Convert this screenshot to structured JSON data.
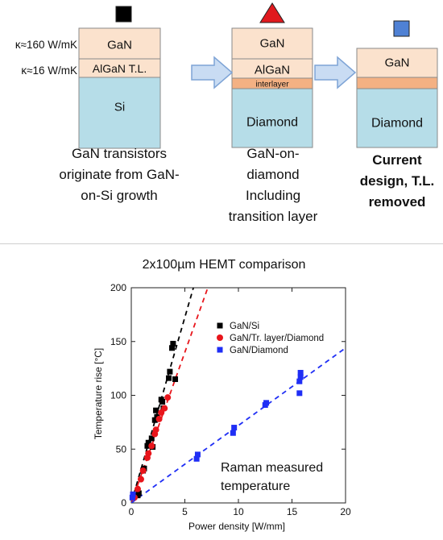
{
  "top_panel": {
    "stacks": [
      {
        "marker": {
          "shape": "square",
          "color": "#000000"
        },
        "layers": [
          "GaN",
          "AlGaN T.L.",
          "Si"
        ],
        "conductivity_labels": [
          "κ≈160 W/mK",
          "κ≈16 W/mK"
        ],
        "caption": [
          "GaN transistors",
          "originate from GaN-",
          "on-Si growth"
        ]
      },
      {
        "marker": {
          "shape": "triangle",
          "color": "#e0191e"
        },
        "layers": [
          "GaN",
          "AlGaN",
          "interlayer",
          "Diamond"
        ],
        "caption": [
          "GaN-on-",
          "diamond",
          "Including",
          "transition layer"
        ]
      },
      {
        "marker": {
          "shape": "square",
          "color": "#4f81d4"
        },
        "layers": [
          "GaN",
          "",
          "Diamond"
        ],
        "caption": [
          "Current",
          "design, T.L.",
          "removed"
        ]
      }
    ],
    "layer_colors": {
      "gan": "#fbe2cd",
      "algan": "#fbe2cd",
      "interlayer": "#f4b183",
      "substrate": "#b6dde8",
      "arrow": "#c9dcf3",
      "arrow_stroke": "#7ea4d6"
    }
  },
  "chart_data": {
    "type": "scatter",
    "title": "2x100µm HEMT comparison",
    "xlabel": "Power density [W/mm]",
    "ylabel": "Temperature rise [°C]",
    "xlim": [
      0,
      20
    ],
    "ylim": [
      0,
      200
    ],
    "xticks": [
      0,
      5,
      10,
      15,
      20
    ],
    "yticks": [
      0,
      50,
      100,
      150,
      200
    ],
    "annotation": [
      "Raman measured",
      "temperature"
    ],
    "legend_position": "upper-left",
    "series": [
      {
        "name": "GaN/Si",
        "marker": "square",
        "color": "#000000",
        "fit_slope": 34.5,
        "points": [
          [
            0.6,
            7
          ],
          [
            0.7,
            9
          ],
          [
            1.1,
            30
          ],
          [
            1.2,
            32
          ],
          [
            1.5,
            53
          ],
          [
            1.6,
            56
          ],
          [
            1.9,
            60
          ],
          [
            2.0,
            52
          ],
          [
            2.2,
            77
          ],
          [
            2.3,
            86
          ],
          [
            2.4,
            80
          ],
          [
            2.8,
            96
          ],
          [
            2.9,
            94
          ],
          [
            3.0,
            88
          ],
          [
            3.5,
            116
          ],
          [
            3.6,
            122
          ],
          [
            3.8,
            144
          ],
          [
            3.9,
            148
          ],
          [
            4.1,
            115
          ]
        ]
      },
      {
        "name": "GaN/Tr. layer/Diamond",
        "marker": "circle",
        "color": "#e8151b",
        "fit_slope": 28.0,
        "points": [
          [
            0.3,
            5
          ],
          [
            0.6,
            13
          ],
          [
            0.9,
            22
          ],
          [
            1.1,
            30
          ],
          [
            1.5,
            42
          ],
          [
            1.6,
            46
          ],
          [
            1.9,
            53
          ],
          [
            2.2,
            64
          ],
          [
            2.3,
            68
          ],
          [
            2.6,
            78
          ],
          [
            2.8,
            84
          ],
          [
            3.1,
            88
          ],
          [
            3.4,
            98
          ]
        ]
      },
      {
        "name": "GaN/Diamond",
        "marker": "square",
        "color": "#1f2ef5",
        "fit_slope": 7.2,
        "points": [
          [
            0.1,
            5
          ],
          [
            0.15,
            8
          ],
          [
            6.1,
            41
          ],
          [
            6.2,
            45
          ],
          [
            9.5,
            65
          ],
          [
            9.6,
            70
          ],
          [
            12.5,
            91
          ],
          [
            12.6,
            93
          ],
          [
            15.7,
            113
          ],
          [
            15.8,
            117
          ],
          [
            15.8,
            121
          ],
          [
            15.7,
            102
          ]
        ]
      }
    ]
  }
}
